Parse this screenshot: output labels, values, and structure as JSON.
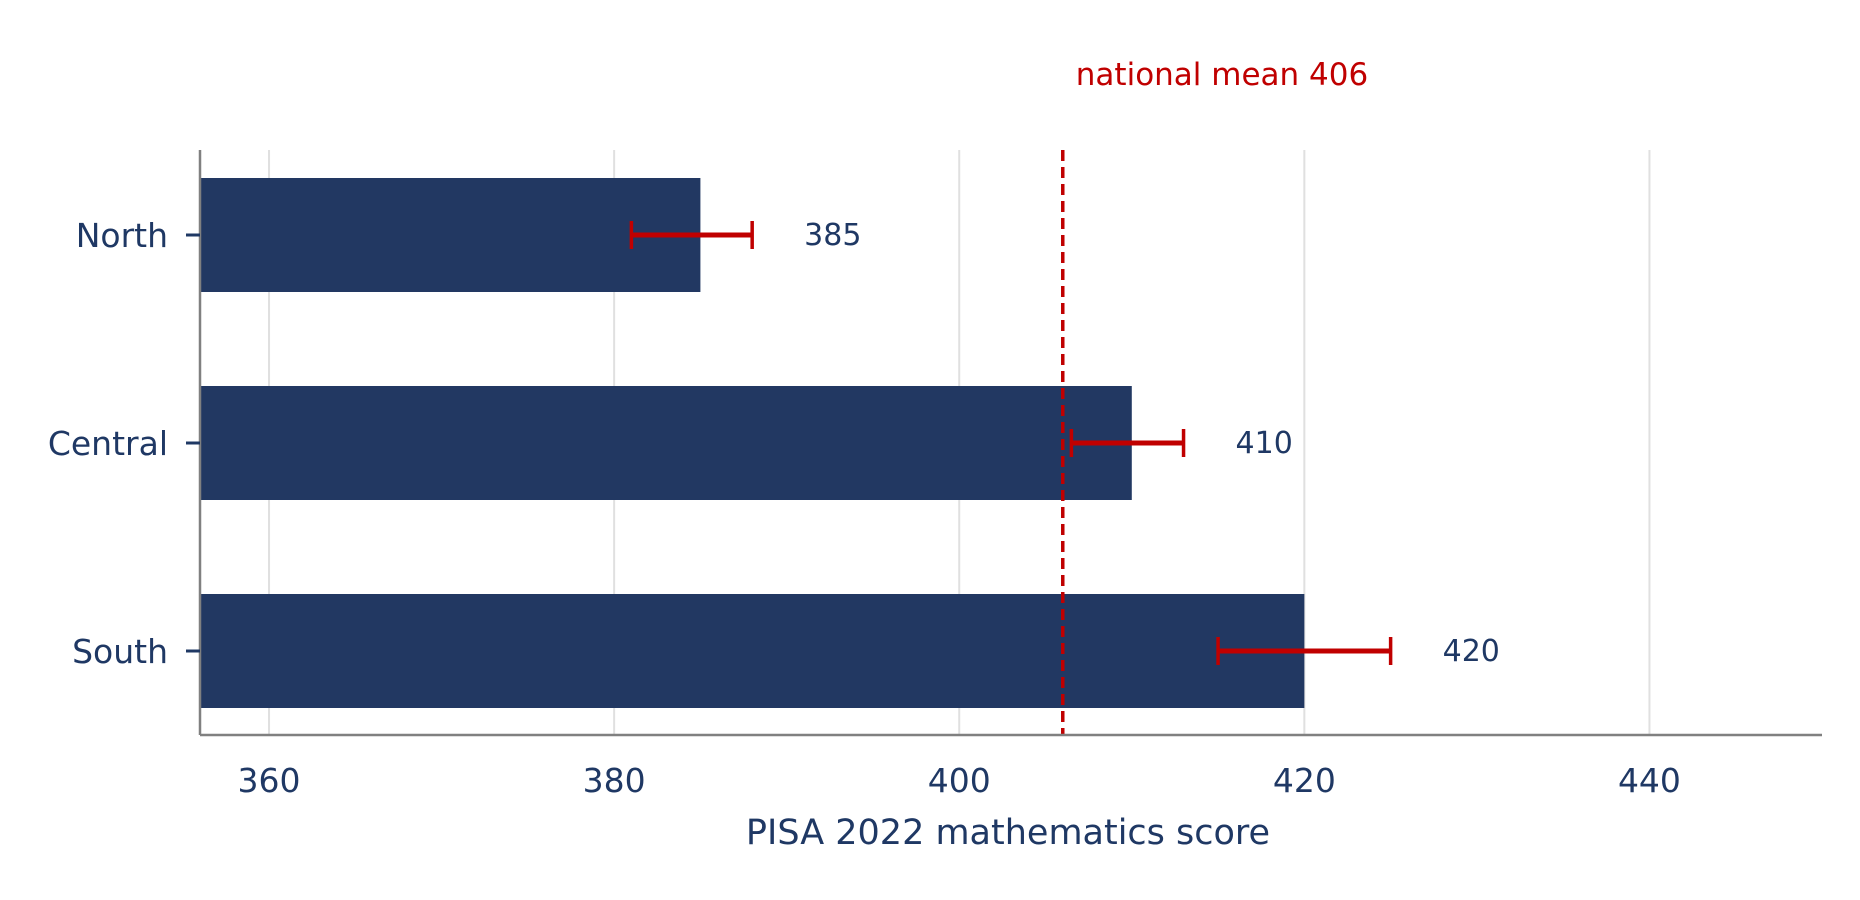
{
  "colors": {
    "bar": "#223862",
    "error_bar": "#c00000",
    "reference_line": "#c00000",
    "text": "#1f3864",
    "gridline": "#e0e0e0",
    "axis": "#808080"
  },
  "chart_data": {
    "type": "bar",
    "orientation": "horizontal",
    "title": "",
    "xlabel": "PISA 2022 mathematics score",
    "ylabel": "",
    "categories": [
      "North",
      "Central",
      "South"
    ],
    "values": [
      385,
      410,
      420
    ],
    "value_labels": [
      "385",
      "410",
      "420"
    ],
    "error_bars": [
      {
        "low": 381,
        "high": 388
      },
      {
        "low": 406.5,
        "high": 413
      },
      {
        "low": 415,
        "high": 425
      }
    ],
    "xlim": [
      356,
      450
    ],
    "xticks": [
      360,
      380,
      400,
      420,
      440
    ],
    "xtick_labels": [
      "360",
      "380",
      "400",
      "420",
      "440"
    ],
    "reference_line": {
      "value": 406,
      "label": "national mean 406",
      "style": "dashed"
    },
    "grid": "vertical",
    "legend": "none"
  }
}
